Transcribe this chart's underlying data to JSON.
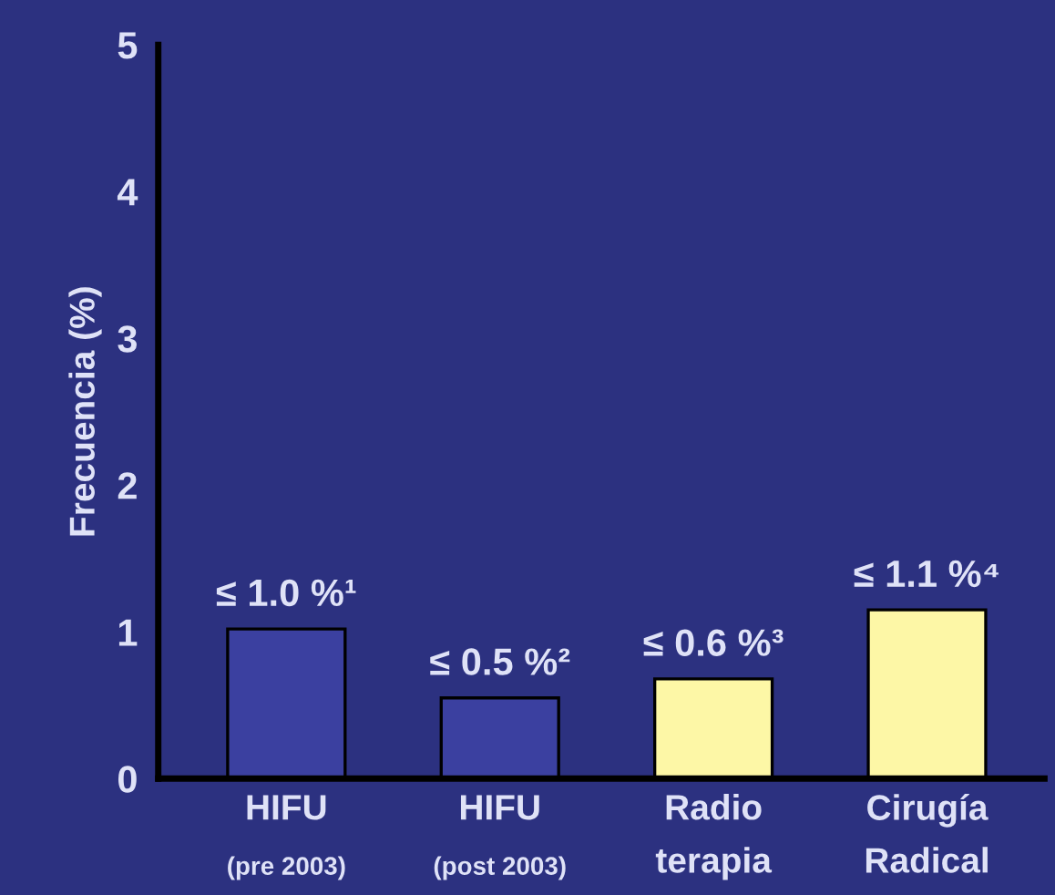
{
  "chart_data": {
    "type": "bar",
    "ylabel": "Frecuencia (%)",
    "categories": [
      "HIFU\n(pre 2003)",
      "HIFU\n(post 2003)",
      "Radio\nterapia",
      "Cirugía\nRadical"
    ],
    "values": [
      1.02,
      0.55,
      0.68,
      1.15
    ],
    "colors": [
      "#3b40a0",
      "#3b40a0",
      "#fdf7a6",
      "#fdf7a6"
    ],
    "value_labels": [
      "≤ 1.0 %¹",
      "≤ 0.5 %²",
      "≤ 0.6 %³",
      "≤ 1.1 %⁴"
    ],
    "ylim": [
      0,
      5
    ],
    "yticks": [
      0,
      1,
      2,
      3,
      4,
      5
    ],
    "grid": false,
    "legend": false
  }
}
